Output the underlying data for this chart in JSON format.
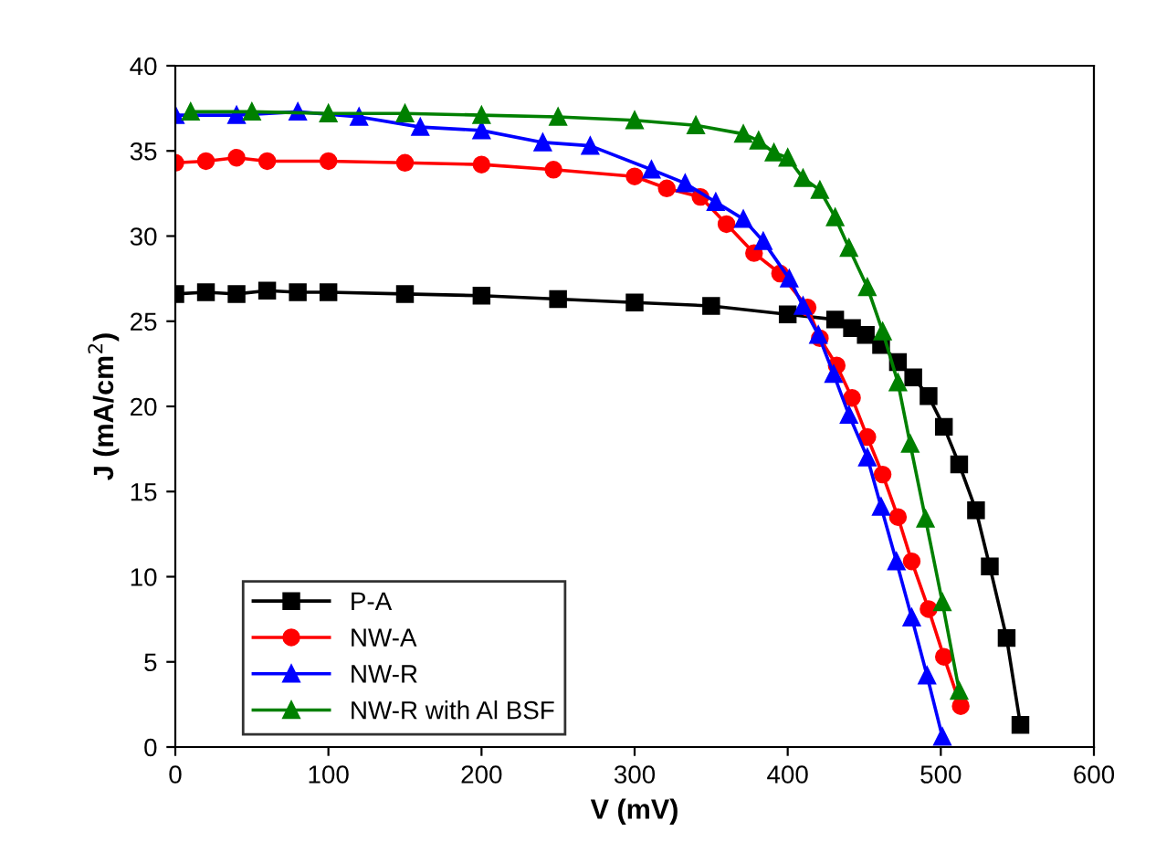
{
  "chart_data": {
    "type": "line",
    "xlabel": "V (mV)",
    "ylabel": "J (mA/cm$^{2}$)",
    "xlim": [
      0,
      600
    ],
    "xticks": [
      0,
      100,
      200,
      300,
      400,
      500,
      600
    ],
    "ylim": [
      0,
      40
    ],
    "yticks": [
      0,
      5,
      10,
      15,
      20,
      25,
      30,
      35,
      40
    ],
    "grid": false,
    "legend": "bottom left",
    "line_style": "solid",
    "series": [
      {
        "name": "P-A",
        "color": "#000000",
        "marker": "square",
        "x": [
          0,
          20,
          40,
          60,
          80,
          100,
          150,
          200,
          250,
          300,
          350,
          400,
          431,
          442,
          451,
          461,
          472,
          482,
          492,
          502,
          512,
          523,
          532,
          543,
          552
        ],
        "values": [
          26.6,
          26.7,
          26.6,
          26.8,
          26.7,
          26.7,
          26.6,
          26.5,
          26.3,
          26.1,
          25.9,
          25.4,
          25.1,
          24.6,
          24.2,
          23.6,
          22.6,
          21.7,
          20.6,
          18.8,
          16.6,
          13.9,
          10.6,
          6.4,
          1.3
        ]
      },
      {
        "name": "NW-A",
        "color": "#ff0000",
        "marker": "circle",
        "x": [
          0,
          20,
          40,
          60,
          100,
          150,
          200,
          247,
          300,
          321,
          343,
          360,
          378,
          395,
          413,
          421,
          432,
          442,
          452,
          462,
          472,
          481,
          492,
          502,
          513
        ],
        "values": [
          34.3,
          34.4,
          34.6,
          34.4,
          34.4,
          34.3,
          34.2,
          33.9,
          33.5,
          32.8,
          32.3,
          30.7,
          29.0,
          27.8,
          25.8,
          24.0,
          22.4,
          20.5,
          18.2,
          16.0,
          13.5,
          10.9,
          8.1,
          5.3,
          2.4
        ]
      },
      {
        "name": "NW-R",
        "color": "#0000ff",
        "marker": "triangle",
        "x": [
          0,
          40,
          80,
          120,
          160,
          200,
          240,
          271,
          311,
          333,
          353,
          371,
          384,
          401,
          410,
          420,
          430,
          440,
          452,
          461,
          471,
          481,
          491,
          501
        ],
        "values": [
          37.1,
          37.1,
          37.3,
          37.0,
          36.4,
          36.2,
          35.5,
          35.3,
          33.9,
          33.1,
          32.0,
          31.0,
          29.7,
          27.5,
          25.9,
          24.2,
          21.9,
          19.5,
          17.0,
          14.1,
          10.9,
          7.6,
          4.2,
          0.6
        ]
      },
      {
        "name": "NW-R with Al BSF",
        "color": "#008000",
        "marker": "triangle",
        "x": [
          10,
          50,
          100,
          150,
          200,
          250,
          300,
          340,
          371,
          381,
          391,
          400,
          410,
          421,
          431,
          440,
          452,
          462,
          472,
          480,
          490,
          501,
          512
        ],
        "values": [
          37.3,
          37.3,
          37.2,
          37.2,
          37.1,
          37.0,
          36.8,
          36.5,
          36.0,
          35.6,
          34.9,
          34.6,
          33.4,
          32.7,
          31.1,
          29.3,
          27.0,
          24.4,
          21.4,
          17.8,
          13.4,
          8.5,
          3.3
        ]
      }
    ]
  }
}
